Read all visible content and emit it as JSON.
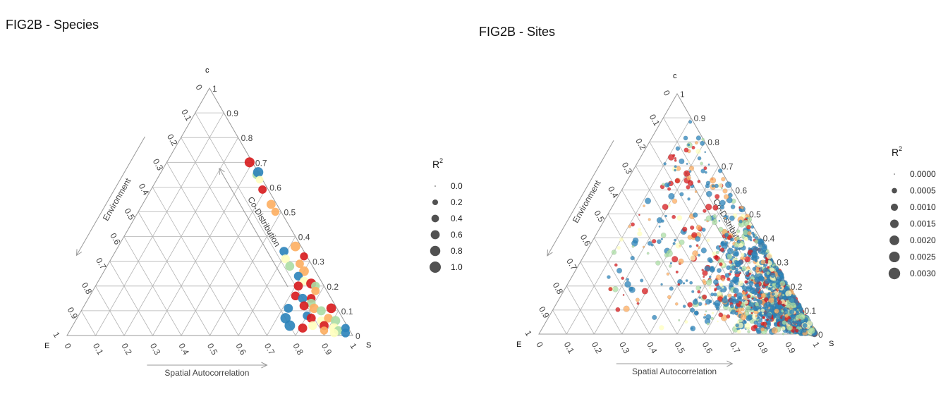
{
  "chart_data": [
    {
      "type": "scatter",
      "subtype": "ternary",
      "title": "FIG2B - Species",
      "vertex_labels": {
        "top": "c",
        "left": "E",
        "right": "S"
      },
      "axis_labels": {
        "bottom": "Spatial Autocorrelation",
        "left": "Environment",
        "right": "Co-Distribution"
      },
      "ticks": [
        "0",
        "0.1",
        "0.2",
        "0.3",
        "0.4",
        "0.5",
        "0.6",
        "0.7",
        "0.8",
        "0.9",
        "1"
      ],
      "grid": true,
      "legend": {
        "title": "R",
        "title_superscript": "2",
        "placement": "right",
        "entries": [
          "0.0",
          "0.2",
          "0.4",
          "0.6",
          "0.8",
          "1.0"
        ]
      },
      "colors": {
        "red": "#d7191c",
        "orange": "#fdae61",
        "yellow": "#ffffbf",
        "green": "#abdda4",
        "blue": "#2b83ba"
      },
      "points": [
        {
          "c": 0.7,
          "s": 0.29,
          "r2": 0.75,
          "color": "red"
        },
        {
          "c": 0.65,
          "s": 0.34,
          "r2": 0.55,
          "color": "green"
        },
        {
          "c": 0.66,
          "s": 0.34,
          "r2": 0.8,
          "color": "blue"
        },
        {
          "c": 0.63,
          "s": 0.36,
          "r2": 0.4,
          "color": "yellow"
        },
        {
          "c": 0.59,
          "s": 0.39,
          "r2": 0.5,
          "color": "red"
        },
        {
          "c": 0.53,
          "s": 0.45,
          "r2": 0.6,
          "color": "orange"
        },
        {
          "c": 0.5,
          "s": 0.48,
          "r2": 0.45,
          "color": "orange"
        },
        {
          "c": 0.36,
          "s": 0.62,
          "r2": 0.7,
          "color": "orange"
        },
        {
          "c": 0.34,
          "s": 0.59,
          "r2": 0.6,
          "color": "blue"
        },
        {
          "c": 0.31,
          "s": 0.61,
          "r2": 0.55,
          "color": "yellow"
        },
        {
          "c": 0.32,
          "s": 0.67,
          "r2": 0.45,
          "color": "red"
        },
        {
          "c": 0.29,
          "s": 0.67,
          "r2": 0.5,
          "color": "orange"
        },
        {
          "c": 0.28,
          "s": 0.64,
          "r2": 0.6,
          "color": "green"
        },
        {
          "c": 0.26,
          "s": 0.7,
          "r2": 0.7,
          "color": "orange"
        },
        {
          "c": 0.24,
          "s": 0.69,
          "r2": 0.55,
          "color": "blue"
        },
        {
          "c": 0.22,
          "s": 0.72,
          "r2": 0.55,
          "color": "yellow"
        },
        {
          "c": 0.2,
          "s": 0.71,
          "r2": 0.6,
          "color": "red"
        },
        {
          "c": 0.21,
          "s": 0.75,
          "r2": 0.75,
          "color": "red"
        },
        {
          "c": 0.2,
          "s": 0.77,
          "r2": 0.55,
          "color": "green"
        },
        {
          "c": 0.18,
          "s": 0.78,
          "r2": 0.5,
          "color": "orange"
        },
        {
          "c": 0.16,
          "s": 0.72,
          "r2": 0.55,
          "color": "red"
        },
        {
          "c": 0.15,
          "s": 0.75,
          "r2": 0.6,
          "color": "blue"
        },
        {
          "c": 0.15,
          "s": 0.78,
          "r2": 0.55,
          "color": "red"
        },
        {
          "c": 0.13,
          "s": 0.79,
          "r2": 0.6,
          "color": "green"
        },
        {
          "c": 0.11,
          "s": 0.72,
          "r2": 0.6,
          "color": "blue"
        },
        {
          "c": 0.12,
          "s": 0.77,
          "r2": 0.6,
          "color": "red"
        },
        {
          "c": 0.11,
          "s": 0.81,
          "r2": 0.65,
          "color": "orange"
        },
        {
          "c": 0.1,
          "s": 0.84,
          "r2": 0.6,
          "color": "green"
        },
        {
          "c": 0.11,
          "s": 0.87,
          "r2": 0.7,
          "color": "red"
        },
        {
          "c": 0.07,
          "s": 0.73,
          "r2": 0.8,
          "color": "blue"
        },
        {
          "c": 0.08,
          "s": 0.8,
          "r2": 0.5,
          "color": "blue"
        },
        {
          "c": 0.07,
          "s": 0.82,
          "r2": 0.6,
          "color": "red"
        },
        {
          "c": 0.06,
          "s": 0.86,
          "r2": 0.5,
          "color": "yellow"
        },
        {
          "c": 0.07,
          "s": 0.88,
          "r2": 0.55,
          "color": "orange"
        },
        {
          "c": 0.06,
          "s": 0.91,
          "r2": 0.65,
          "color": "green"
        },
        {
          "c": 0.04,
          "s": 0.76,
          "r2": 0.85,
          "color": "blue"
        },
        {
          "c": 0.03,
          "s": 0.81,
          "r2": 0.6,
          "color": "red"
        },
        {
          "c": 0.04,
          "s": 0.84,
          "r2": 0.55,
          "color": "yellow"
        },
        {
          "c": 0.04,
          "s": 0.88,
          "r2": 0.6,
          "color": "red"
        },
        {
          "c": 0.03,
          "s": 0.92,
          "r2": 0.7,
          "color": "yellow"
        },
        {
          "c": 0.02,
          "s": 0.94,
          "r2": 0.55,
          "color": "green"
        },
        {
          "c": 0.03,
          "s": 0.96,
          "r2": 0.5,
          "color": "blue"
        },
        {
          "c": 0.01,
          "s": 0.97,
          "r2": 0.55,
          "color": "blue"
        },
        {
          "c": 0.01,
          "s": 0.93,
          "r2": 0.5,
          "color": "yellow"
        },
        {
          "c": 0.02,
          "s": 0.89,
          "r2": 0.45,
          "color": "orange"
        }
      ]
    },
    {
      "type": "scatter",
      "subtype": "ternary",
      "title": "FIG2B - Sites",
      "vertex_labels": {
        "top": "c",
        "left": "E",
        "right": "S"
      },
      "axis_labels": {
        "bottom": "Spatial Autocorrelation",
        "left": "Environment",
        "right": "Co-Distribution"
      },
      "ticks": [
        "0",
        "0.1",
        "0.2",
        "0.3",
        "0.4",
        "0.5",
        "0.6",
        "0.7",
        "0.8",
        "0.9",
        "1"
      ],
      "grid": true,
      "legend": {
        "title": "R",
        "title_superscript": "2",
        "placement": "right",
        "entries": [
          "0.0000",
          "0.0005",
          "0.0010",
          "0.0015",
          "0.0020",
          "0.0025",
          "0.0030"
        ]
      },
      "colors": {
        "red": "#d7191c",
        "orange": "#fdae61",
        "yellow": "#ffffbf",
        "green": "#abdda4",
        "blue": "#2b83ba"
      },
      "point_cloud": {
        "count": 1900,
        "description_of_distribution": "dense along the right (Co-Distribution) edge and S vertex, sparse toward E; s mostly 0.45-1",
        "color_mix": {
          "blue": 0.5,
          "green": 0.15,
          "yellow": 0.1,
          "orange": 0.12,
          "red": 0.13
        }
      }
    }
  ]
}
